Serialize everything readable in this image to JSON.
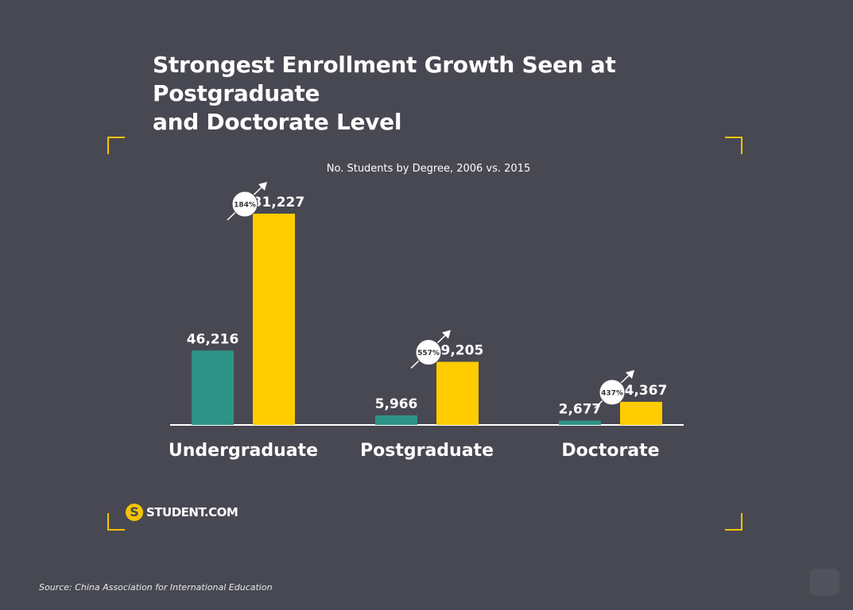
{
  "title_line1": "Strongest Enrollment Growth Seen at Postgraduate",
  "title_line2": "and Doctorate Level",
  "logo_text": "STUDENT.COM",
  "logo_mark": "S",
  "source": "Source: China Association for International Education",
  "colors": {
    "background": "#484853",
    "series_2006": "#2e9387",
    "series_2015": "#ffcc00",
    "accent": "#f5c400"
  },
  "chart_data": {
    "type": "bar",
    "title": "No. Students by Degree, 2006 vs. 2015",
    "categories": [
      "Undergraduate",
      "Postgraduate",
      "Doctorate"
    ],
    "series": [
      {
        "values": [
          46216,
          5966,
          2677
        ],
        "labels": [
          "46,216",
          "5,966",
          "2,677"
        ],
        "color": "#2e9387"
      },
      {
        "values": [
          131227,
          39205,
          14367
        ],
        "labels": [
          "131,227",
          "39,205",
          "14,367"
        ],
        "color": "#ffcc00"
      }
    ],
    "growth_labels": [
      "184%",
      "557%",
      "437%"
    ],
    "ylim": [
      0,
      131227
    ],
    "grid": false,
    "legend": "none"
  }
}
